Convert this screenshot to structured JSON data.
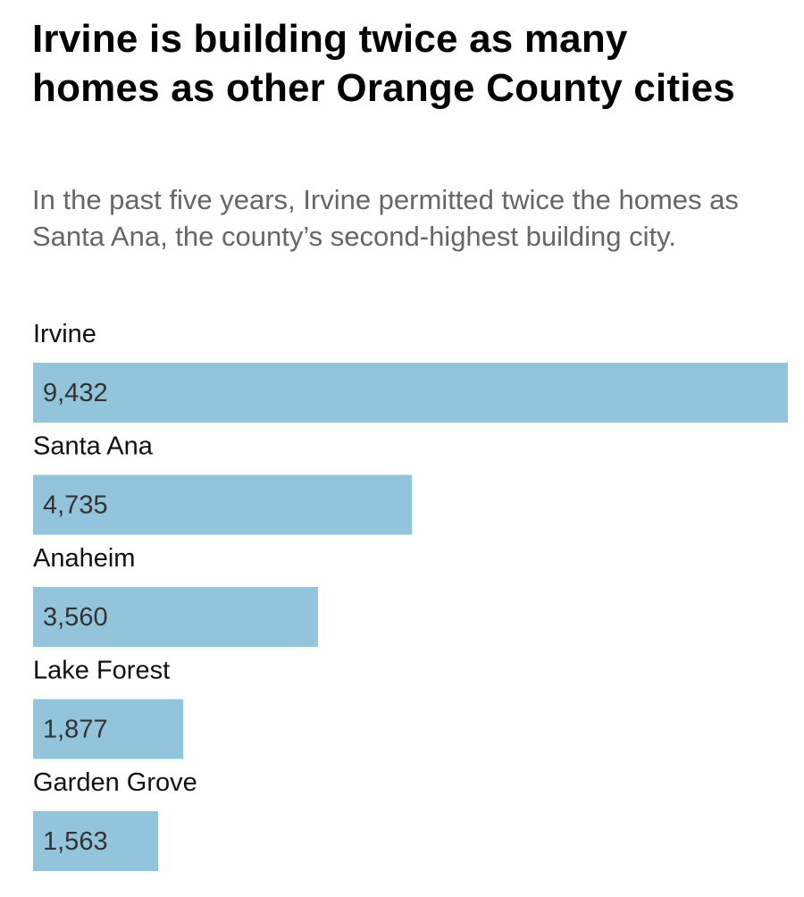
{
  "header": {
    "title": "Irvine is building twice as many homes as other Orange County cities",
    "subtitle": "In the past five years, Irvine permitted twice the homes as Santa Ana, the county’s second-highest building city."
  },
  "chart_data": {
    "type": "bar",
    "orientation": "horizontal",
    "categories": [
      "Irvine",
      "Santa Ana",
      "Anaheim",
      "Lake Forest",
      "Garden Grove"
    ],
    "values": [
      9432,
      4735,
      3560,
      1877,
      1563
    ],
    "value_labels": [
      "9,432",
      "4,735",
      "3,560",
      "1,877",
      "1,563"
    ],
    "bar_color": "#92c4dc",
    "xlim": [
      0,
      9432
    ],
    "grid": false
  }
}
